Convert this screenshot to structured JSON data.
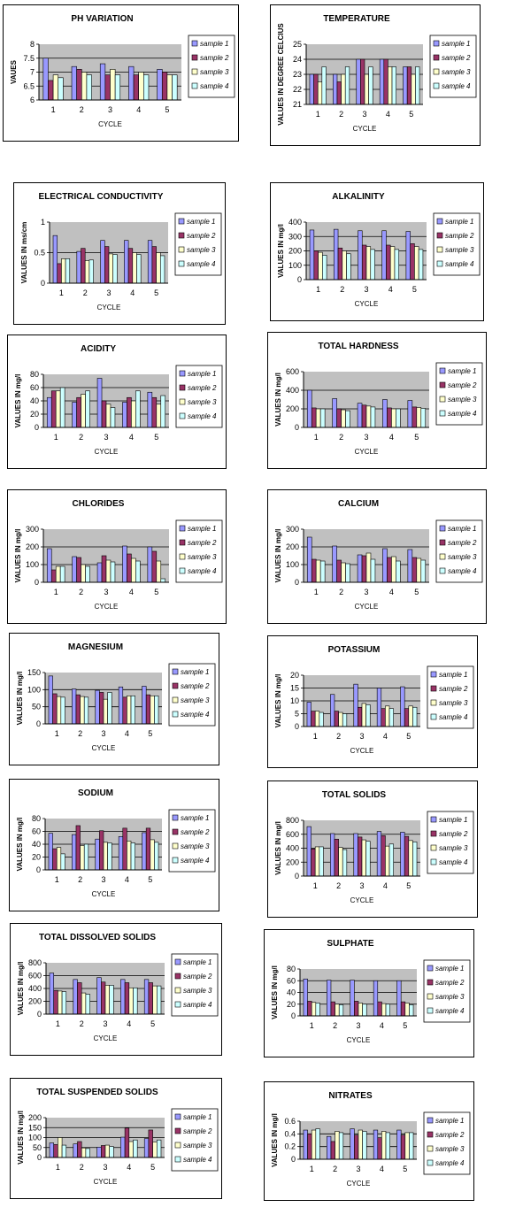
{
  "series_colors": [
    "#9999ff",
    "#993366",
    "#ffffcc",
    "#ccffff"
  ],
  "chart_data": [
    {
      "type": "bar",
      "title": "PH VARIATION",
      "xlabel": "CYCLE",
      "ylabel": "VAUES",
      "categories": [
        "1",
        "2",
        "3",
        "4",
        "5"
      ],
      "ylim": [
        6,
        8
      ],
      "yticks": [
        "6",
        "6.5",
        "7",
        "7.5",
        "8"
      ],
      "grid": true,
      "legend": "right",
      "series": [
        {
          "name": "sample 1",
          "values": [
            7.5,
            7.2,
            7.3,
            7.2,
            7.1
          ]
        },
        {
          "name": "sample 2",
          "values": [
            6.7,
            7.1,
            6.9,
            6.9,
            7.0
          ]
        },
        {
          "name": "sample 3",
          "values": [
            6.9,
            7.0,
            7.1,
            7.0,
            6.9
          ]
        },
        {
          "name": "sample 4",
          "values": [
            6.8,
            6.9,
            6.9,
            6.9,
            6.9
          ]
        }
      ]
    },
    {
      "type": "bar",
      "title": "TEMPERATURE",
      "xlabel": "CYCLE",
      "ylabel": "VALUES IN DEGREE CELCIUS",
      "categories": [
        "1",
        "2",
        "3",
        "4",
        "5"
      ],
      "ylim": [
        21,
        25
      ],
      "yticks": [
        "21",
        "22",
        "23",
        "24",
        "25"
      ],
      "grid": true,
      "legend": "right",
      "series": [
        {
          "name": "sample 1",
          "values": [
            23,
            23,
            24,
            24,
            23.5
          ]
        },
        {
          "name": "sample 2",
          "values": [
            23,
            22.5,
            24,
            24,
            23.5
          ]
        },
        {
          "name": "sample 3",
          "values": [
            22.5,
            23,
            23,
            23.5,
            23
          ]
        },
        {
          "name": "sample 4",
          "values": [
            23.5,
            23.5,
            23.5,
            23.5,
            23.5
          ]
        }
      ]
    },
    {
      "type": "bar",
      "title": "ELECTRICAL CONDUCTIVITY",
      "xlabel": "CYCLE",
      "ylabel": "VALUES IN ms/cm",
      "categories": [
        "1",
        "2",
        "3",
        "4",
        "5"
      ],
      "ylim": [
        0,
        1
      ],
      "yticks": [
        "0",
        "0.5",
        "1"
      ],
      "grid": true,
      "legend": "right",
      "series": [
        {
          "name": "sample 1",
          "values": [
            0.78,
            0.52,
            0.7,
            0.7,
            0.7
          ]
        },
        {
          "name": "sample 2",
          "values": [
            0.32,
            0.57,
            0.6,
            0.57,
            0.6
          ]
        },
        {
          "name": "sample 3",
          "values": [
            0.4,
            0.37,
            0.48,
            0.5,
            0.5
          ]
        },
        {
          "name": "sample 4",
          "values": [
            0.4,
            0.38,
            0.47,
            0.47,
            0.45
          ]
        }
      ]
    },
    {
      "type": "bar",
      "title": "ALKALINITY",
      "xlabel": "CYCLE",
      "ylabel": "VALUES IN mg/l",
      "categories": [
        "1",
        "2",
        "3",
        "4",
        "5"
      ],
      "ylim": [
        0,
        400
      ],
      "yticks": [
        "0",
        "100",
        "200",
        "300",
        "400"
      ],
      "grid": true,
      "legend": "right",
      "series": [
        {
          "name": "sample 1",
          "values": [
            345,
            350,
            340,
            340,
            335
          ]
        },
        {
          "name": "sample 2",
          "values": [
            200,
            220,
            240,
            240,
            250
          ]
        },
        {
          "name": "sample 3",
          "values": [
            190,
            200,
            230,
            230,
            230
          ]
        },
        {
          "name": "sample 4",
          "values": [
            170,
            180,
            210,
            210,
            210
          ]
        }
      ]
    },
    {
      "type": "bar",
      "title": "ACIDITY",
      "xlabel": "CYCLE",
      "ylabel": "VALUES IN mg/l",
      "categories": [
        "1",
        "2",
        "3",
        "4",
        "5"
      ],
      "ylim": [
        0,
        80
      ],
      "yticks": [
        "0",
        "20",
        "40",
        "60",
        "80"
      ],
      "grid": true,
      "legend": "right",
      "series": [
        {
          "name": "sample 1",
          "values": [
            45,
            38,
            74,
            38,
            53
          ]
        },
        {
          "name": "sample 2",
          "values": [
            55,
            45,
            40,
            45,
            45
          ]
        },
        {
          "name": "sample 3",
          "values": [
            55,
            50,
            35,
            40,
            35
          ]
        },
        {
          "name": "sample 4",
          "values": [
            60,
            55,
            30,
            55,
            48
          ]
        }
      ]
    },
    {
      "type": "bar",
      "title": "TOTAL HARDNESS",
      "xlabel": "CYCLE",
      "ylabel": "VALUES IN mg/l",
      "categories": [
        "1",
        "2",
        "3",
        "4",
        "5"
      ],
      "ylim": [
        0,
        600
      ],
      "yticks": [
        "0",
        "200",
        "400",
        "600"
      ],
      "grid": true,
      "legend": "right",
      "series": [
        {
          "name": "sample 1",
          "values": [
            400,
            310,
            260,
            300,
            290
          ]
        },
        {
          "name": "sample 2",
          "values": [
            210,
            200,
            240,
            210,
            220
          ]
        },
        {
          "name": "sample 3",
          "values": [
            200,
            190,
            230,
            200,
            215
          ]
        },
        {
          "name": "sample 4",
          "values": [
            200,
            180,
            220,
            200,
            205
          ]
        }
      ]
    },
    {
      "type": "bar",
      "title": "CHLORIDES",
      "xlabel": "CYCLE",
      "ylabel": "VALUES IN mg/l",
      "categories": [
        "1",
        "2",
        "3",
        "4",
        "5"
      ],
      "ylim": [
        0,
        300
      ],
      "yticks": [
        "0",
        "100",
        "200",
        "300"
      ],
      "grid": true,
      "legend": "right",
      "series": [
        {
          "name": "sample 1",
          "values": [
            190,
            145,
            110,
            205,
            200
          ]
        },
        {
          "name": "sample 2",
          "values": [
            70,
            140,
            150,
            160,
            175
          ]
        },
        {
          "name": "sample 3",
          "values": [
            90,
            100,
            125,
            135,
            120
          ]
        },
        {
          "name": "sample 4",
          "values": [
            90,
            90,
            115,
            120,
            20
          ]
        }
      ]
    },
    {
      "type": "bar",
      "title": "CALCIUM",
      "xlabel": "CYCLE",
      "ylabel": "VALUES IN mg/l",
      "categories": [
        "1",
        "2",
        "3",
        "4",
        "5"
      ],
      "ylim": [
        0,
        300
      ],
      "yticks": [
        "0",
        "100",
        "200",
        "300"
      ],
      "grid": true,
      "legend": "right",
      "series": [
        {
          "name": "sample 1",
          "values": [
            255,
            205,
            155,
            190,
            185
          ]
        },
        {
          "name": "sample 2",
          "values": [
            130,
            125,
            150,
            140,
            140
          ]
        },
        {
          "name": "sample 3",
          "values": [
            125,
            110,
            165,
            145,
            135
          ]
        },
        {
          "name": "sample 4",
          "values": [
            120,
            105,
            130,
            120,
            125
          ]
        }
      ]
    },
    {
      "type": "bar",
      "title": "MAGNESIUM",
      "xlabel": "CYCLE",
      "ylabel": "VALUES IN mg/l",
      "categories": [
        "1",
        "2",
        "3",
        "4",
        "5"
      ],
      "ylim": [
        0,
        150
      ],
      "yticks": [
        "0",
        "50",
        "100",
        "150"
      ],
      "grid": true,
      "legend": "right",
      "series": [
        {
          "name": "sample 1",
          "values": [
            140,
            102,
            98,
            108,
            110
          ]
        },
        {
          "name": "sample 2",
          "values": [
            88,
            85,
            92,
            78,
            85
          ]
        },
        {
          "name": "sample 3",
          "values": [
            80,
            80,
            72,
            82,
            82
          ]
        },
        {
          "name": "sample 4",
          "values": [
            78,
            78,
            92,
            82,
            82
          ]
        }
      ]
    },
    {
      "type": "bar",
      "title": "POTASSIUM",
      "xlabel": "CYCLE",
      "ylabel": "VALUES IN mg/l",
      "categories": [
        "1",
        "2",
        "3",
        "4",
        "5"
      ],
      "ylim": [
        0,
        20
      ],
      "yticks": [
        "0",
        "5",
        "10",
        "15",
        "20"
      ],
      "grid": true,
      "legend": "right",
      "series": [
        {
          "name": "sample 1",
          "values": [
            9.5,
            12.5,
            16.5,
            15,
            15.5
          ]
        },
        {
          "name": "sample 2",
          "values": [
            6,
            6,
            7.5,
            7,
            7
          ]
        },
        {
          "name": "sample 3",
          "values": [
            6,
            5.5,
            9,
            8,
            8
          ]
        },
        {
          "name": "sample 4",
          "values": [
            5.5,
            5,
            8.5,
            7,
            7.5
          ]
        }
      ]
    },
    {
      "type": "bar",
      "title": "SODIUM",
      "xlabel": "CYCLE",
      "ylabel": "VALUES IN mg/l",
      "categories": [
        "1",
        "2",
        "3",
        "4",
        "5"
      ],
      "ylim": [
        0,
        80
      ],
      "yticks": [
        "0",
        "20",
        "40",
        "60",
        "80"
      ],
      "grid": true,
      "legend": "right",
      "series": [
        {
          "name": "sample 1",
          "values": [
            57,
            55,
            48,
            52,
            58
          ]
        },
        {
          "name": "sample 2",
          "values": [
            33,
            69,
            61,
            65,
            65
          ]
        },
        {
          "name": "sample 3",
          "values": [
            35,
            38,
            43,
            45,
            47
          ]
        },
        {
          "name": "sample 4",
          "values": [
            25,
            40,
            42,
            42,
            43
          ]
        }
      ]
    },
    {
      "type": "bar",
      "title": "TOTAL SOLIDS",
      "xlabel": "CYCLE",
      "ylabel": "VALUES IN mg/l",
      "categories": [
        "1",
        "2",
        "3",
        "4",
        "5"
      ],
      "ylim": [
        0,
        800
      ],
      "yticks": [
        "0",
        "200",
        "400",
        "600",
        "800"
      ],
      "grid": true,
      "legend": "right",
      "series": [
        {
          "name": "sample 1",
          "values": [
            710,
            610,
            610,
            640,
            630
          ]
        },
        {
          "name": "sample 2",
          "values": [
            390,
            530,
            560,
            580,
            570
          ]
        },
        {
          "name": "sample 3",
          "values": [
            420,
            410,
            520,
            430,
            510
          ]
        },
        {
          "name": "sample 4",
          "values": [
            420,
            380,
            500,
            460,
            490
          ]
        }
      ]
    },
    {
      "type": "bar",
      "title": "TOTAL DISSOLVED SOLIDS",
      "xlabel": "CYCLE",
      "ylabel": "VALUES IN mg/l",
      "categories": [
        "1",
        "2",
        "3",
        "4",
        "5"
      ],
      "ylim": [
        0,
        800
      ],
      "yticks": [
        "0",
        "200",
        "400",
        "600",
        "800"
      ],
      "grid": true,
      "legend": "right",
      "series": [
        {
          "name": "sample 1",
          "values": [
            640,
            540,
            570,
            540,
            540
          ]
        },
        {
          "name": "sample 2",
          "values": [
            370,
            490,
            500,
            490,
            490
          ]
        },
        {
          "name": "sample 3",
          "values": [
            360,
            330,
            450,
            410,
            440
          ]
        },
        {
          "name": "sample 4",
          "values": [
            350,
            310,
            450,
            410,
            440
          ]
        }
      ]
    },
    {
      "type": "bar",
      "title": "SULPHATE",
      "xlabel": "CYCLE",
      "ylabel": "VALUES IN mg/l",
      "categories": [
        "1",
        "2",
        "3",
        "4",
        "5"
      ],
      "ylim": [
        0,
        80
      ],
      "yticks": [
        "0",
        "20",
        "40",
        "60",
        "80"
      ],
      "grid": true,
      "legend": "right",
      "series": [
        {
          "name": "sample 1",
          "values": [
            63,
            61,
            61,
            60,
            60
          ]
        },
        {
          "name": "sample 2",
          "values": [
            25,
            24,
            25,
            24,
            24
          ]
        },
        {
          "name": "sample 3",
          "values": [
            23,
            20,
            22,
            21,
            22
          ]
        },
        {
          "name": "sample 4",
          "values": [
            22,
            19,
            20,
            20,
            19
          ]
        }
      ]
    },
    {
      "type": "bar",
      "title": "TOTAL SUSPENDED SOLIDS",
      "xlabel": "CYCLE",
      "ylabel": "VALUES IN mg/l",
      "categories": [
        "1",
        "2",
        "3",
        "4",
        "5"
      ],
      "ylim": [
        0,
        200
      ],
      "yticks": [
        "0",
        "50",
        "100",
        "150",
        "200"
      ],
      "grid": true,
      "legend": "right",
      "series": [
        {
          "name": "sample 1",
          "values": [
            73,
            68,
            52,
            102,
            95
          ]
        },
        {
          "name": "sample 2",
          "values": [
            65,
            80,
            60,
            148,
            138
          ]
        },
        {
          "name": "sample 3",
          "values": [
            100,
            48,
            62,
            80,
            78
          ]
        },
        {
          "name": "sample 4",
          "values": [
            62,
            45,
            55,
            88,
            88
          ]
        }
      ]
    },
    {
      "type": "bar",
      "title": "NITRATES",
      "xlabel": "CYCLE",
      "ylabel": "VALUES IN mg/l",
      "categories": [
        "1",
        "2",
        "3",
        "4",
        "5"
      ],
      "ylim": [
        0,
        0.6
      ],
      "yticks": [
        "0",
        "0.2",
        "0.4",
        "0.6"
      ],
      "grid": true,
      "legend": "right",
      "series": [
        {
          "name": "sample 1",
          "values": [
            0.46,
            0.36,
            0.48,
            0.46,
            0.46
          ]
        },
        {
          "name": "sample 2",
          "values": [
            0.4,
            0.28,
            0.38,
            0.34,
            0.38
          ]
        },
        {
          "name": "sample 3",
          "values": [
            0.46,
            0.44,
            0.46,
            0.44,
            0.42
          ]
        },
        {
          "name": "sample 4",
          "values": [
            0.48,
            0.42,
            0.44,
            0.42,
            0.42
          ]
        }
      ]
    }
  ]
}
